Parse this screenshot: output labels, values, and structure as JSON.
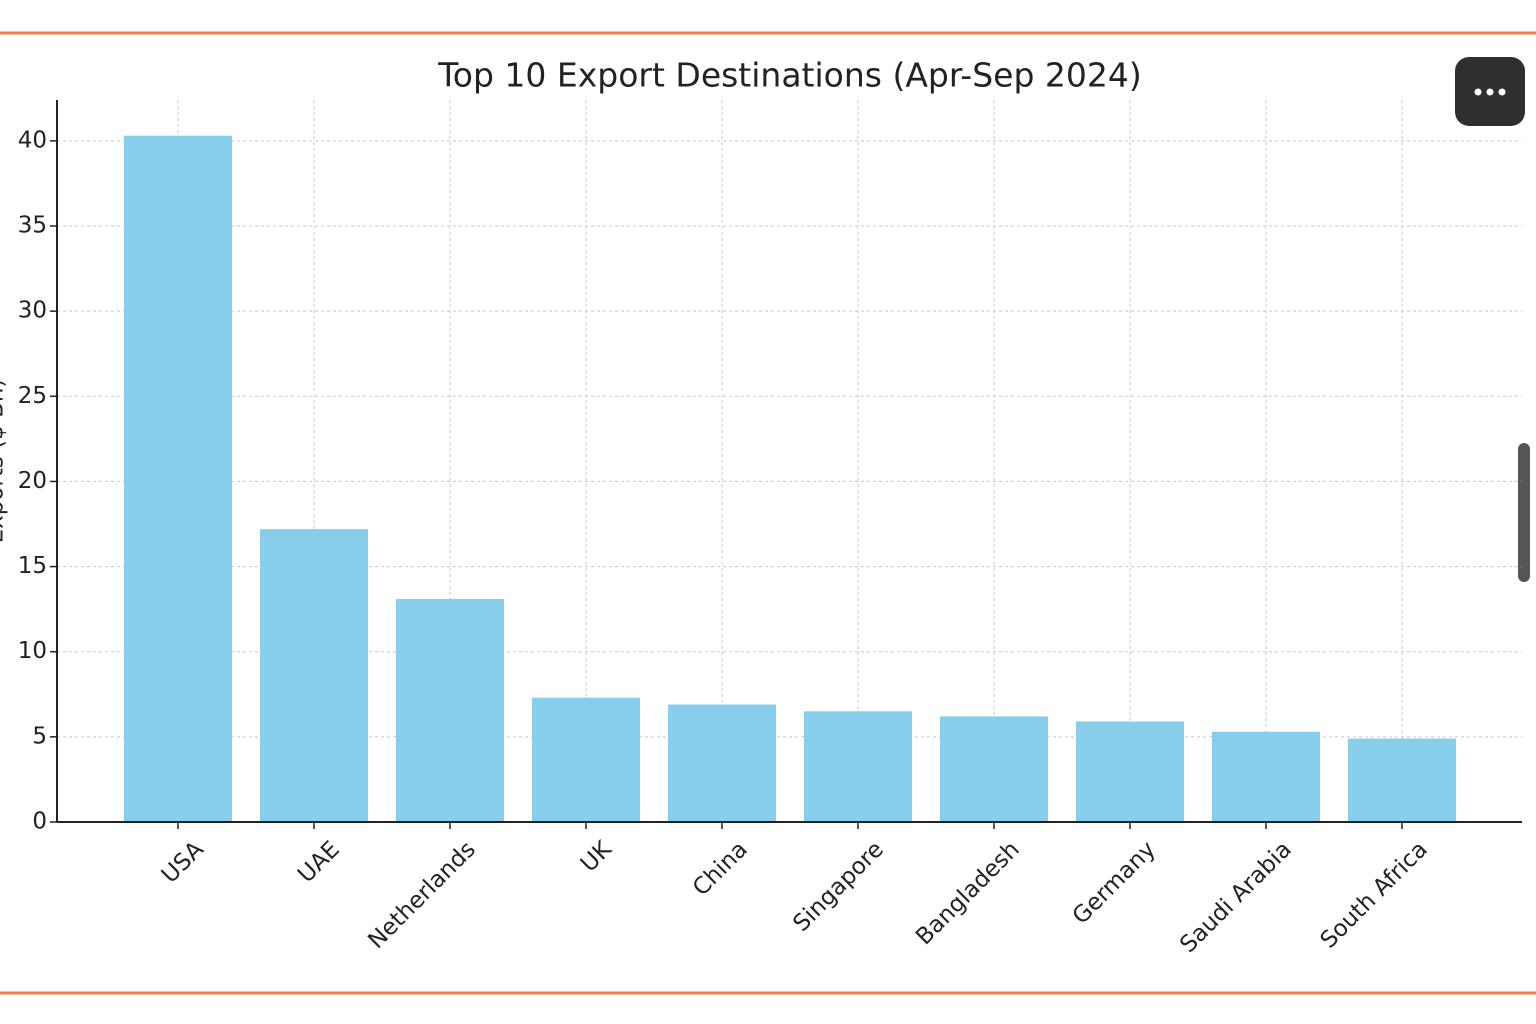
{
  "chart_data": {
    "type": "bar",
    "title": "Top 10 Export Destinations (Apr-Sep 2024)",
    "y_label": "Exports ($ Bn)",
    "categories": [
      "USA",
      "UAE",
      "Netherlands",
      "UK",
      "China",
      "Singapore",
      "Bangladesh",
      "Germany",
      "Saudi Arabia",
      "South Africa"
    ],
    "values": [
      40.3,
      17.2,
      13.1,
      7.3,
      6.9,
      6.5,
      6.2,
      5.9,
      5.3,
      4.9
    ],
    "color": "#87ceeb",
    "ylim": [
      0,
      42.4
    ],
    "yticks": [
      0,
      5,
      10,
      15,
      20,
      25,
      30,
      35,
      40
    ],
    "grid": true
  }
}
